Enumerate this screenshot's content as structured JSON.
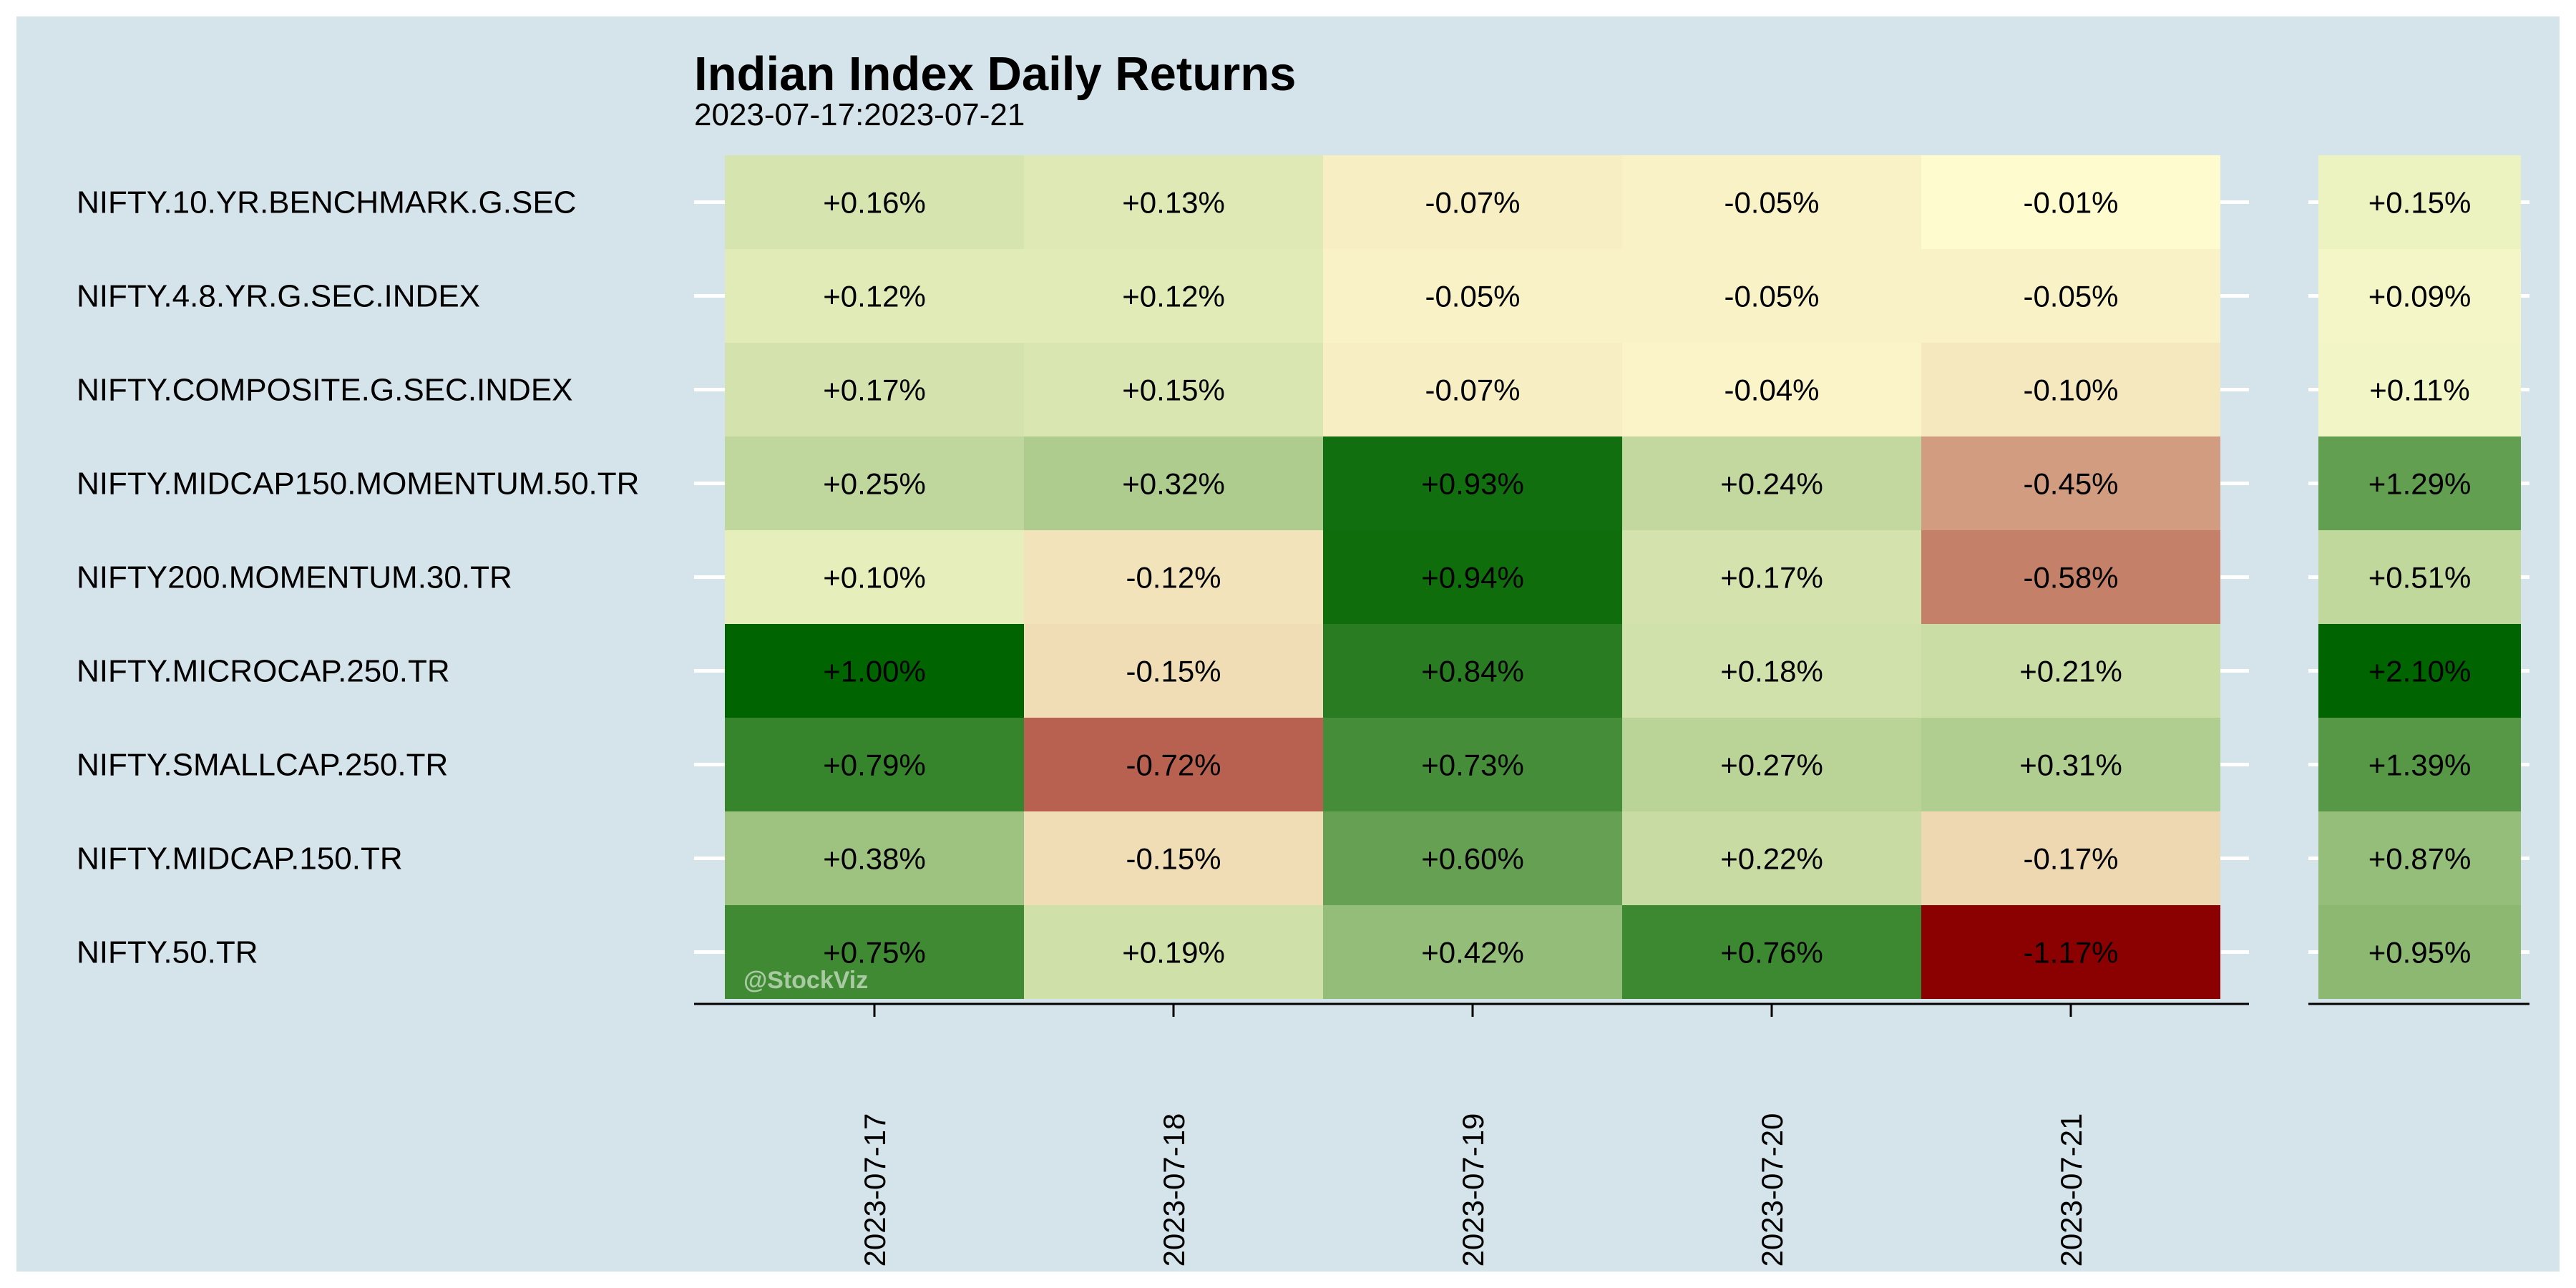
{
  "chart_data": {
    "type": "heatmap",
    "title": "Indian Index Daily Returns",
    "subtitle": "2023-07-17:2023-07-21",
    "watermark": "@StockViz",
    "rows": [
      "NIFTY.10.YR.BENCHMARK.G.SEC",
      "NIFTY.4.8.YR.G.SEC.INDEX",
      "NIFTY.COMPOSITE.G.SEC.INDEX",
      "NIFTY.MIDCAP150.MOMENTUM.50.TR",
      "NIFTY200.MOMENTUM.30.TR",
      "NIFTY.MICROCAP.250.TR",
      "NIFTY.SMALLCAP.250.TR",
      "NIFTY.MIDCAP.150.TR",
      "NIFTY.50.TR"
    ],
    "columns": [
      "2023-07-17",
      "2023-07-18",
      "2023-07-19",
      "2023-07-20",
      "2023-07-21"
    ],
    "values": [
      [
        0.16,
        0.13,
        -0.07,
        -0.05,
        -0.01
      ],
      [
        0.12,
        0.12,
        -0.05,
        -0.05,
        -0.05
      ],
      [
        0.17,
        0.15,
        -0.07,
        -0.04,
        -0.1
      ],
      [
        0.25,
        0.32,
        0.93,
        0.24,
        -0.45
      ],
      [
        0.1,
        -0.12,
        0.94,
        0.17,
        -0.58
      ],
      [
        1.0,
        -0.15,
        0.84,
        0.18,
        0.21
      ],
      [
        0.79,
        -0.72,
        0.73,
        0.27,
        0.31
      ],
      [
        0.38,
        -0.15,
        0.6,
        0.22,
        -0.17
      ],
      [
        0.75,
        0.19,
        0.42,
        0.76,
        -1.17
      ]
    ],
    "labels": [
      [
        "+0.16%",
        "+0.13%",
        "-0.07%",
        "-0.05%",
        "-0.01%"
      ],
      [
        "+0.12%",
        "+0.12%",
        "-0.05%",
        "-0.05%",
        "-0.05%"
      ],
      [
        "+0.17%",
        "+0.15%",
        "-0.07%",
        "-0.04%",
        "-0.10%"
      ],
      [
        "+0.25%",
        "+0.32%",
        "+0.93%",
        "+0.24%",
        "-0.45%"
      ],
      [
        "+0.10%",
        "-0.12%",
        "+0.94%",
        "+0.17%",
        "-0.58%"
      ],
      [
        "+1.00%",
        "-0.15%",
        "+0.84%",
        "+0.18%",
        "+0.21%"
      ],
      [
        "+0.79%",
        "-0.72%",
        "+0.73%",
        "+0.27%",
        "+0.31%"
      ],
      [
        "+0.38%",
        "-0.15%",
        "+0.60%",
        "+0.22%",
        "-0.17%"
      ],
      [
        "+0.75%",
        "+0.19%",
        "+0.42%",
        "+0.76%",
        "-1.17%"
      ]
    ],
    "totals": [
      0.15,
      0.09,
      0.11,
      1.29,
      0.51,
      2.1,
      1.39,
      0.87,
      0.95
    ],
    "total_labels": [
      "+0.15%",
      "+0.09%",
      "+0.11%",
      "+1.29%",
      "+0.51%",
      "+2.10%",
      "+1.39%",
      "+0.87%",
      "+0.95%"
    ],
    "colors": {
      "background": "#d5e3ea",
      "low": "#8b0000",
      "mid": "#fffdd0",
      "high": "#006400"
    }
  }
}
